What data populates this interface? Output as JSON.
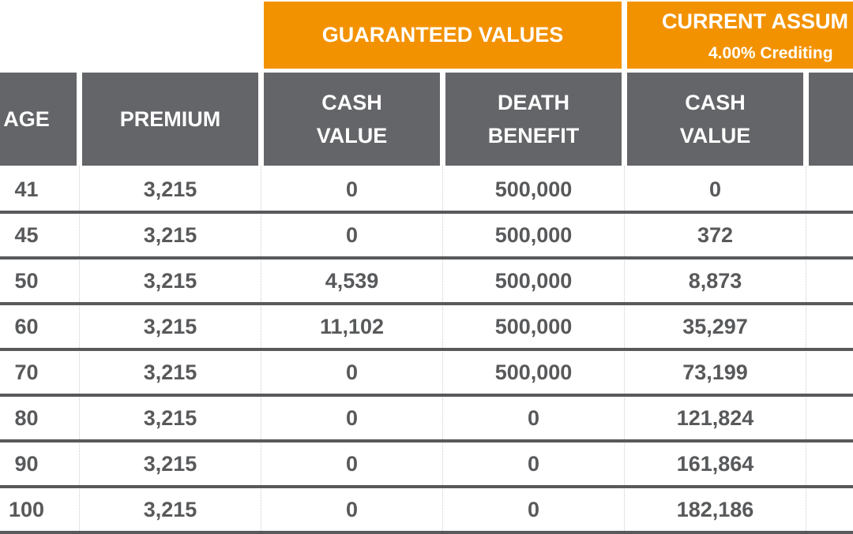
{
  "group_headers": [
    {
      "label": "GUARANTEED VALUES"
    },
    {
      "label": "CURRENT ASSUM",
      "sublabel": "4.00% Crediting"
    }
  ],
  "columns": [
    "AGE",
    "PREMIUM",
    "CASH VALUE",
    "DEATH BENEFIT",
    "CASH VALUE"
  ],
  "rows": [
    [
      "41",
      "3,215",
      "0",
      "500,000",
      "0"
    ],
    [
      "45",
      "3,215",
      "0",
      "500,000",
      "372"
    ],
    [
      "50",
      "3,215",
      "4,539",
      "500,000",
      "8,873"
    ],
    [
      "60",
      "3,215",
      "11,102",
      "500,000",
      "35,297"
    ],
    [
      "70",
      "3,215",
      "0",
      "500,000",
      "73,199"
    ],
    [
      "80",
      "3,215",
      "0",
      "0",
      "121,824"
    ],
    [
      "90",
      "3,215",
      "0",
      "0",
      "161,864"
    ],
    [
      "100",
      "3,215",
      "0",
      "0",
      "182,186"
    ]
  ]
}
